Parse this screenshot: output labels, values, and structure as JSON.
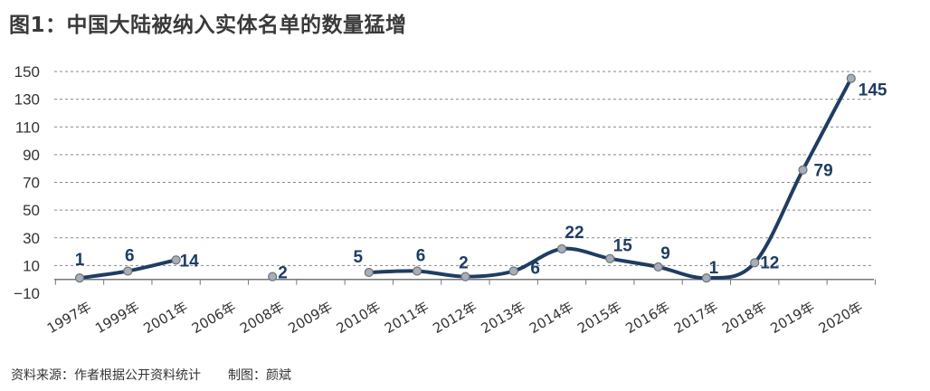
{
  "title": "图1：中国大陆被纳入实体名单的数量猛增",
  "footer": {
    "source": "资料来源：作者根据公开资料统计",
    "credit": "制图：颜斌"
  },
  "colors": {
    "line": "#1f3d63",
    "marker": "#a8aeb6",
    "grid": "#888888",
    "title": "#3a3a3a"
  },
  "chart_data": {
    "type": "line",
    "title": "图1：中国大陆被纳入实体名单的数量猛增",
    "xlabel": "",
    "ylabel": "",
    "ylim": [
      -10,
      150
    ],
    "yticks": [
      "150",
      "130",
      "110",
      "90",
      "70",
      "50",
      "30",
      "10",
      "−10"
    ],
    "ytick_values": [
      150,
      130,
      110,
      90,
      70,
      50,
      30,
      10,
      -10
    ],
    "grid": true,
    "grid_style": "dashed",
    "categories": [
      "1997年",
      "1999年",
      "2001年",
      "2006年",
      "2008年",
      "2009年",
      "2010年",
      "2011年",
      "2012年",
      "2013年",
      "2014年",
      "2015年",
      "2016年",
      "2017年",
      "2018年",
      "2019年",
      "2020年"
    ],
    "values": [
      1,
      6,
      14,
      null,
      2,
      null,
      5,
      6,
      2,
      6,
      22,
      15,
      9,
      1,
      12,
      79,
      145
    ],
    "data_labels": [
      "1",
      "6",
      "14",
      "",
      "2",
      "",
      "5",
      "6",
      "2",
      "6",
      "22",
      "15",
      "9",
      "1",
      "12",
      "79",
      "145"
    ],
    "segments": [
      [
        0,
        1,
        2
      ],
      [
        4
      ],
      [
        6,
        7,
        8,
        9,
        10,
        11,
        12,
        13,
        14,
        15,
        16
      ]
    ],
    "smooth": true
  }
}
